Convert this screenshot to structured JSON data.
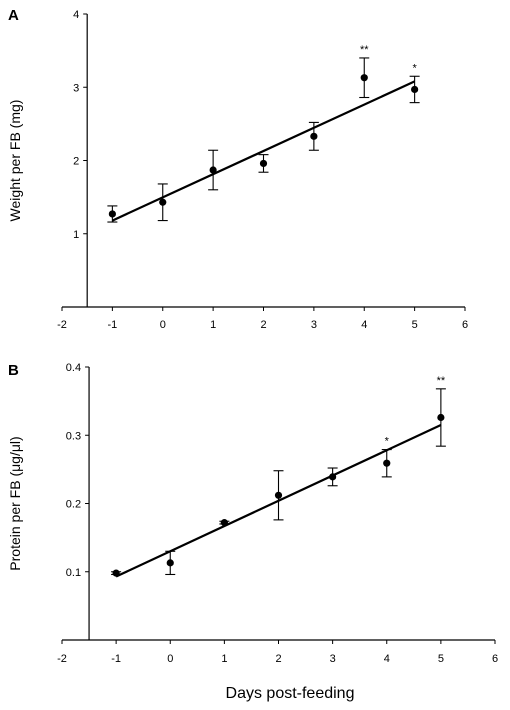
{
  "figure": {
    "xlabel": "Days post-feeding"
  },
  "chart_data": [
    {
      "panel": "A",
      "type": "scatter",
      "ylabel": "Weight per FB (mg)",
      "xlim": [
        -2,
        6
      ],
      "ylim": [
        0,
        4
      ],
      "xticks": [
        "-2",
        "-1",
        "0",
        "1",
        "2",
        "3",
        "4",
        "5",
        "6"
      ],
      "yticks": [
        "1",
        "2",
        "3",
        "4"
      ],
      "ytick_values": [
        1,
        2,
        3,
        4
      ],
      "y_axis_at_x": -1.5,
      "grid": false,
      "x": [
        -1,
        0,
        1,
        2,
        3,
        4,
        5
      ],
      "y": [
        1.27,
        1.43,
        1.87,
        1.96,
        2.33,
        3.13,
        2.97
      ],
      "error": [
        0.11,
        0.25,
        0.27,
        0.12,
        0.19,
        0.27,
        0.18
      ],
      "significance": [
        "",
        "",
        "",
        "",
        "",
        "**",
        "*"
      ],
      "fit_line": {
        "x": [
          -1,
          5
        ],
        "y": [
          1.18,
          3.08
        ]
      }
    },
    {
      "panel": "B",
      "type": "scatter",
      "ylabel": "Protein per FB (μg/μl)",
      "xlim": [
        -2,
        6
      ],
      "ylim": [
        0.0,
        0.4
      ],
      "xticks": [
        "-2",
        "-1",
        "0",
        "1",
        "2",
        "3",
        "4",
        "5",
        "6"
      ],
      "yticks": [
        "0.1",
        "0.2",
        "0.3",
        "0.4"
      ],
      "ytick_values": [
        0.1,
        0.2,
        0.3,
        0.4
      ],
      "y_axis_at_x": -1.5,
      "grid": false,
      "x": [
        -1,
        0,
        1,
        2,
        3,
        4,
        5
      ],
      "y": [
        0.098,
        0.113,
        0.172,
        0.212,
        0.239,
        0.259,
        0.326
      ],
      "error": [
        0.002,
        0.017,
        0.002,
        0.036,
        0.013,
        0.02,
        0.042
      ],
      "significance": [
        "",
        "",
        "",
        "",
        "",
        "*",
        "**"
      ],
      "fit_line": {
        "x": [
          -1,
          5
        ],
        "y": [
          0.093,
          0.315
        ]
      }
    }
  ]
}
